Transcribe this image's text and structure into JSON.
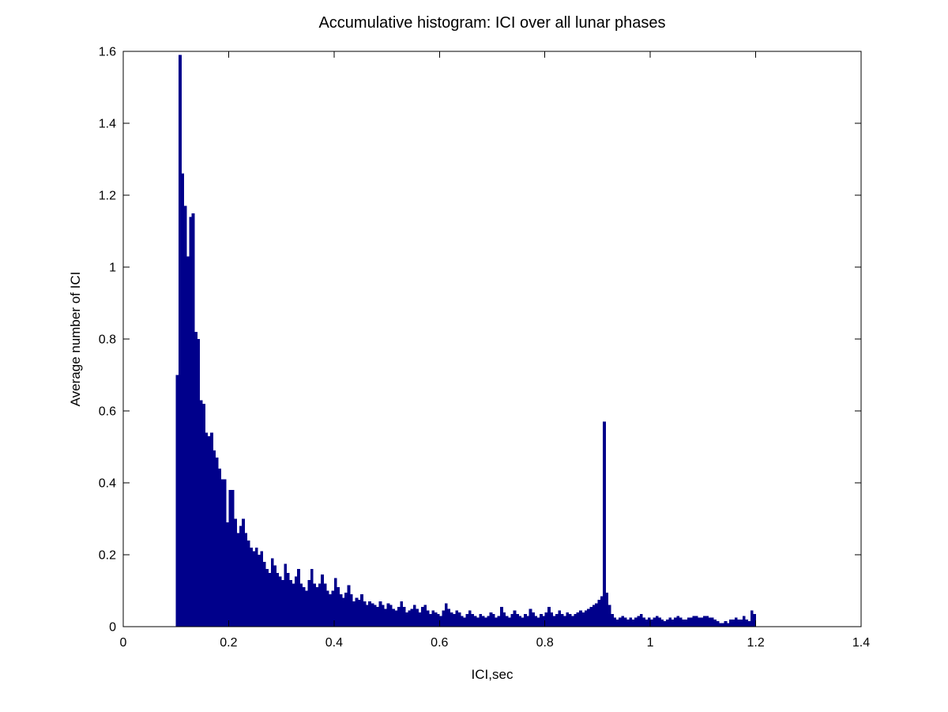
{
  "figure": {
    "background": "#ffffff",
    "bar_color": "#00008B",
    "axis_color": "#000000"
  },
  "chart_data": {
    "type": "bar",
    "title": "Accumulative histogram: ICI over all lunar phases",
    "xlabel": "ICI,sec",
    "ylabel": "Average number of ICI",
    "xlim": [
      0,
      1.4
    ],
    "ylim": [
      0,
      1.6
    ],
    "grid": false,
    "legend": null,
    "x_ticks": [
      0,
      0.2,
      0.4,
      0.6,
      0.8,
      1,
      1.2,
      1.4
    ],
    "x_tick_labels": [
      "0",
      "0.2",
      "0.4",
      "0.6",
      "0.8",
      "1",
      "1.2",
      "1.4"
    ],
    "y_ticks": [
      0,
      0.2,
      0.4,
      0.6,
      0.8,
      1,
      1.2,
      1.4,
      1.6
    ],
    "y_tick_labels": [
      "0",
      "0.2",
      "0.4",
      "0.6",
      "0.8",
      "1",
      "1.2",
      "1.4",
      "1.6"
    ],
    "bin_start": 0.1,
    "bin_width": 0.005,
    "values": [
      0.7,
      1.59,
      1.26,
      1.17,
      1.03,
      1.14,
      1.15,
      0.82,
      0.8,
      0.63,
      0.62,
      0.54,
      0.53,
      0.54,
      0.49,
      0.47,
      0.44,
      0.41,
      0.41,
      0.29,
      0.38,
      0.38,
      0.3,
      0.26,
      0.28,
      0.3,
      0.26,
      0.24,
      0.22,
      0.21,
      0.22,
      0.2,
      0.21,
      0.18,
      0.16,
      0.15,
      0.19,
      0.17,
      0.15,
      0.14,
      0.13,
      0.175,
      0.15,
      0.13,
      0.12,
      0.14,
      0.16,
      0.12,
      0.11,
      0.1,
      0.13,
      0.16,
      0.12,
      0.11,
      0.12,
      0.145,
      0.12,
      0.1,
      0.09,
      0.1,
      0.135,
      0.11,
      0.09,
      0.08,
      0.095,
      0.115,
      0.09,
      0.07,
      0.08,
      0.075,
      0.09,
      0.07,
      0.06,
      0.07,
      0.065,
      0.06,
      0.055,
      0.07,
      0.06,
      0.05,
      0.065,
      0.06,
      0.05,
      0.045,
      0.055,
      0.07,
      0.055,
      0.04,
      0.045,
      0.05,
      0.06,
      0.05,
      0.04,
      0.055,
      0.06,
      0.045,
      0.035,
      0.045,
      0.04,
      0.035,
      0.03,
      0.045,
      0.065,
      0.05,
      0.04,
      0.035,
      0.045,
      0.04,
      0.03,
      0.025,
      0.035,
      0.045,
      0.035,
      0.03,
      0.025,
      0.035,
      0.03,
      0.025,
      0.03,
      0.04,
      0.035,
      0.025,
      0.03,
      0.055,
      0.04,
      0.03,
      0.025,
      0.035,
      0.045,
      0.035,
      0.03,
      0.025,
      0.035,
      0.03,
      0.05,
      0.04,
      0.03,
      0.025,
      0.035,
      0.03,
      0.04,
      0.055,
      0.04,
      0.03,
      0.035,
      0.045,
      0.035,
      0.03,
      0.04,
      0.035,
      0.03,
      0.035,
      0.04,
      0.045,
      0.04,
      0.045,
      0.05,
      0.055,
      0.06,
      0.065,
      0.075,
      0.085,
      0.57,
      0.095,
      0.06,
      0.035,
      0.025,
      0.02,
      0.025,
      0.03,
      0.025,
      0.02,
      0.025,
      0.02,
      0.025,
      0.03,
      0.035,
      0.025,
      0.02,
      0.025,
      0.02,
      0.025,
      0.03,
      0.025,
      0.02,
      0.015,
      0.02,
      0.025,
      0.02,
      0.025,
      0.03,
      0.025,
      0.02,
      0.02,
      0.025,
      0.025,
      0.03,
      0.03,
      0.025,
      0.025,
      0.03,
      0.03,
      0.025,
      0.025,
      0.02,
      0.015,
      0.01,
      0.01,
      0.015,
      0.01,
      0.02,
      0.02,
      0.025,
      0.02,
      0.02,
      0.03,
      0.02,
      0.015,
      0.045,
      0.035
    ]
  }
}
